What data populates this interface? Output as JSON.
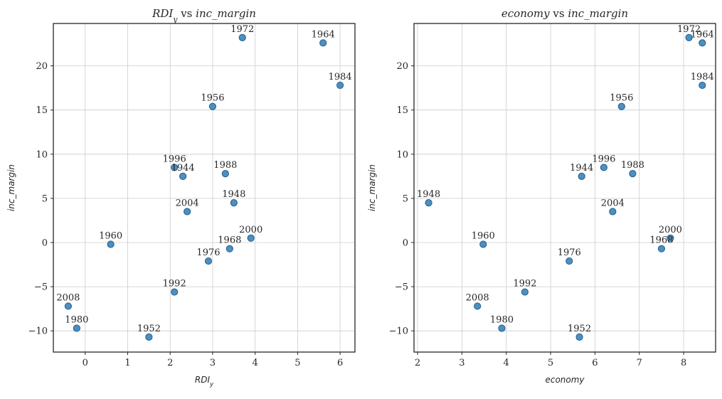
{
  "chart_data": [
    {
      "type": "scatter",
      "title_parts": [
        {
          "text": "RDI",
          "italic": true
        },
        {
          "text": "y",
          "italic": true,
          "sub": true
        },
        {
          "text": " vs ",
          "italic": false
        },
        {
          "text": "inc_margin",
          "italic": true
        }
      ],
      "xlabel_parts": [
        {
          "text": "RDI",
          "italic": true
        },
        {
          "text": "y",
          "italic": true,
          "sub": true
        }
      ],
      "ylabel_parts": [
        {
          "text": "inc_margin",
          "italic": true
        }
      ],
      "xlim": [
        -0.75,
        6.35
      ],
      "ylim": [
        -12.4,
        24.8
      ],
      "xticks": [
        0,
        1,
        2,
        3,
        4,
        5,
        6
      ],
      "xtick_labels": [
        "0",
        "1",
        "2",
        "3",
        "4",
        "5",
        "6"
      ],
      "yticks": [
        -10,
        -5,
        0,
        5,
        10,
        15,
        20
      ],
      "ytick_labels": [
        "−10",
        "−5",
        "0",
        "5",
        "10",
        "15",
        "20"
      ],
      "grid": true,
      "point_color": "#2e7bb4",
      "points": [
        {
          "label": "1944",
          "x": 2.3,
          "y": 7.5
        },
        {
          "label": "1948",
          "x": 3.5,
          "y": 4.5
        },
        {
          "label": "1952",
          "x": 1.5,
          "y": -10.7
        },
        {
          "label": "1956",
          "x": 3.0,
          "y": 15.4
        },
        {
          "label": "1960",
          "x": 0.6,
          "y": -0.2
        },
        {
          "label": "1964",
          "x": 5.6,
          "y": 22.6
        },
        {
          "label": "1968",
          "x": 3.4,
          "y": -0.7
        },
        {
          "label": "1972",
          "x": 3.7,
          "y": 23.2
        },
        {
          "label": "1976",
          "x": 2.9,
          "y": -2.1
        },
        {
          "label": "1980",
          "x": -0.2,
          "y": -9.7
        },
        {
          "label": "1984",
          "x": 6.0,
          "y": 17.8
        },
        {
          "label": "1988",
          "x": 3.3,
          "y": 7.8
        },
        {
          "label": "1992",
          "x": 2.1,
          "y": -5.6
        },
        {
          "label": "1996",
          "x": 2.1,
          "y": 8.5
        },
        {
          "label": "2000",
          "x": 3.9,
          "y": 0.5
        },
        {
          "label": "2004",
          "x": 2.4,
          "y": 3.5
        },
        {
          "label": "2008",
          "x": -0.4,
          "y": -7.2
        }
      ]
    },
    {
      "type": "scatter",
      "title_parts": [
        {
          "text": "economy",
          "italic": true
        },
        {
          "text": " vs ",
          "italic": false
        },
        {
          "text": "inc_margin",
          "italic": true
        }
      ],
      "xlabel_parts": [
        {
          "text": "economy",
          "italic": true
        }
      ],
      "ylabel_parts": [
        {
          "text": "inc_margin",
          "italic": true
        }
      ],
      "xlim": [
        1.92,
        8.72
      ],
      "ylim": [
        -12.4,
        24.8
      ],
      "xticks": [
        2,
        3,
        4,
        5,
        6,
        7,
        8
      ],
      "xtick_labels": [
        "2",
        "3",
        "4",
        "5",
        "6",
        "7",
        "8"
      ],
      "yticks": [
        -10,
        -5,
        0,
        5,
        10,
        15,
        20
      ],
      "ytick_labels": [
        "−10",
        "−5",
        "0",
        "5",
        "10",
        "15",
        "20"
      ],
      "grid": true,
      "point_color": "#2e7bb4",
      "points": [
        {
          "label": "1944",
          "x": 5.7,
          "y": 7.5
        },
        {
          "label": "1948",
          "x": 2.25,
          "y": 4.5
        },
        {
          "label": "1952",
          "x": 5.65,
          "y": -10.7
        },
        {
          "label": "1956",
          "x": 6.6,
          "y": 15.4
        },
        {
          "label": "1960",
          "x": 3.48,
          "y": -0.2
        },
        {
          "label": "1964",
          "x": 8.42,
          "y": 22.6
        },
        {
          "label": "1968",
          "x": 7.5,
          "y": -0.7
        },
        {
          "label": "1972",
          "x": 8.12,
          "y": 23.2
        },
        {
          "label": "1976",
          "x": 5.42,
          "y": -2.1
        },
        {
          "label": "1980",
          "x": 3.9,
          "y": -9.7
        },
        {
          "label": "1984",
          "x": 8.42,
          "y": 17.8
        },
        {
          "label": "1988",
          "x": 6.85,
          "y": 7.8
        },
        {
          "label": "1992",
          "x": 4.42,
          "y": -5.6
        },
        {
          "label": "1996",
          "x": 6.2,
          "y": 8.5
        },
        {
          "label": "2000",
          "x": 7.7,
          "y": 0.5
        },
        {
          "label": "2004",
          "x": 6.4,
          "y": 3.5
        },
        {
          "label": "2008",
          "x": 3.35,
          "y": -7.2
        }
      ]
    }
  ]
}
